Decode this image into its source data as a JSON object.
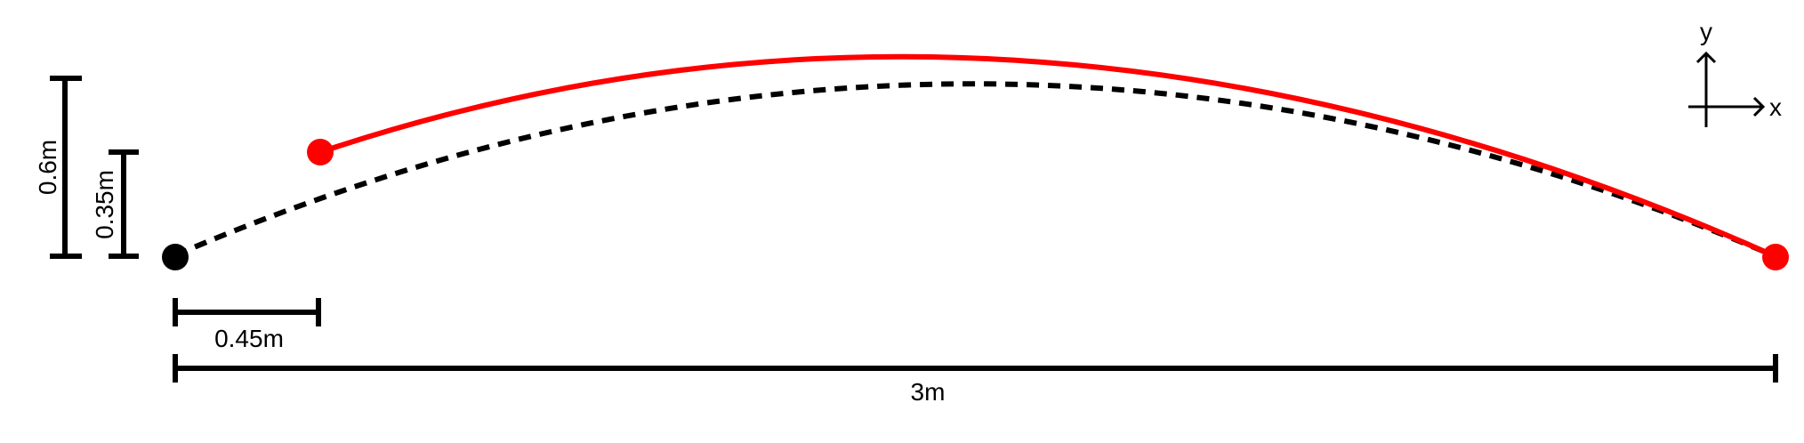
{
  "dimensions": {
    "max_height_label": "0.6m",
    "start_height_label": "0.35m",
    "start_offset_label": "0.45m",
    "total_distance_label": "3m"
  },
  "axes": {
    "x_label": "x",
    "y_label": "y"
  },
  "colors": {
    "ink": "#000000",
    "trajectory_red": "#ff0000"
  }
}
